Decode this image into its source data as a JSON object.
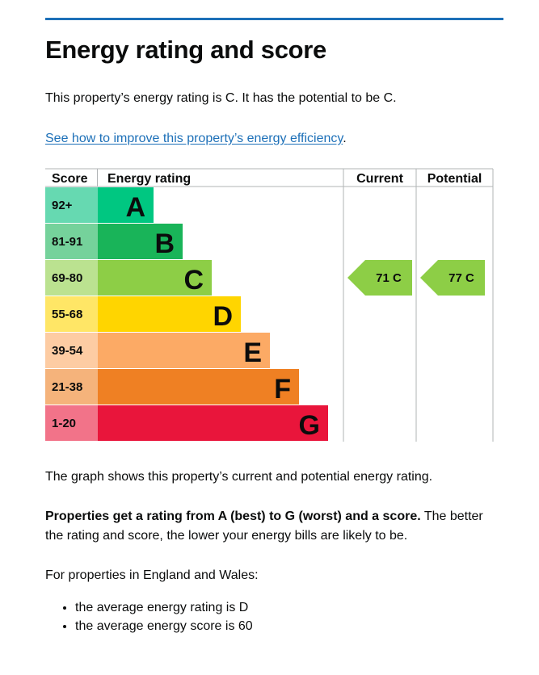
{
  "heading": "Energy rating and score",
  "intro": "This property’s energy rating is C. It has the potential to be C.",
  "link": {
    "text": "See how to improve this property’s energy efficiency",
    "suffix": "."
  },
  "chart_data": {
    "type": "bar",
    "title": "",
    "columns": {
      "score": "Score",
      "rating": "Energy rating",
      "current": "Current",
      "potential": "Potential"
    },
    "bands": [
      {
        "band": "A",
        "range": "92+",
        "color": "#00c781",
        "score_color": "#66d9b1"
      },
      {
        "band": "B",
        "range": "81-91",
        "color": "#19b459",
        "score_color": "#75d29b"
      },
      {
        "band": "C",
        "range": "69-80",
        "color": "#8dce46",
        "score_color": "#bbe290"
      },
      {
        "band": "D",
        "range": "55-68",
        "color": "#ffd500",
        "score_color": "#ffe666"
      },
      {
        "band": "E",
        "range": "39-54",
        "color": "#fcaa65",
        "score_color": "#fdcca3"
      },
      {
        "band": "F",
        "range": "21-38",
        "color": "#ef8023",
        "score_color": "#f5b37b"
      },
      {
        "band": "G",
        "range": "1-20",
        "color": "#e9153b",
        "score_color": "#f27389"
      }
    ],
    "current": {
      "score": 71,
      "band": "C",
      "label": "71 C"
    },
    "potential": {
      "score": 77,
      "band": "C",
      "label": "77 C"
    }
  },
  "graph_caption": "The graph shows this property’s current and potential energy rating.",
  "explain": {
    "bold": "Properties get a rating from A (best) to G (worst) and a score.",
    "rest": " The better the rating and score, the lower your energy bills are likely to be."
  },
  "averages": {
    "intro": "For properties in England and Wales:",
    "items": [
      "the average energy rating is D",
      "the average energy score is 60"
    ]
  }
}
